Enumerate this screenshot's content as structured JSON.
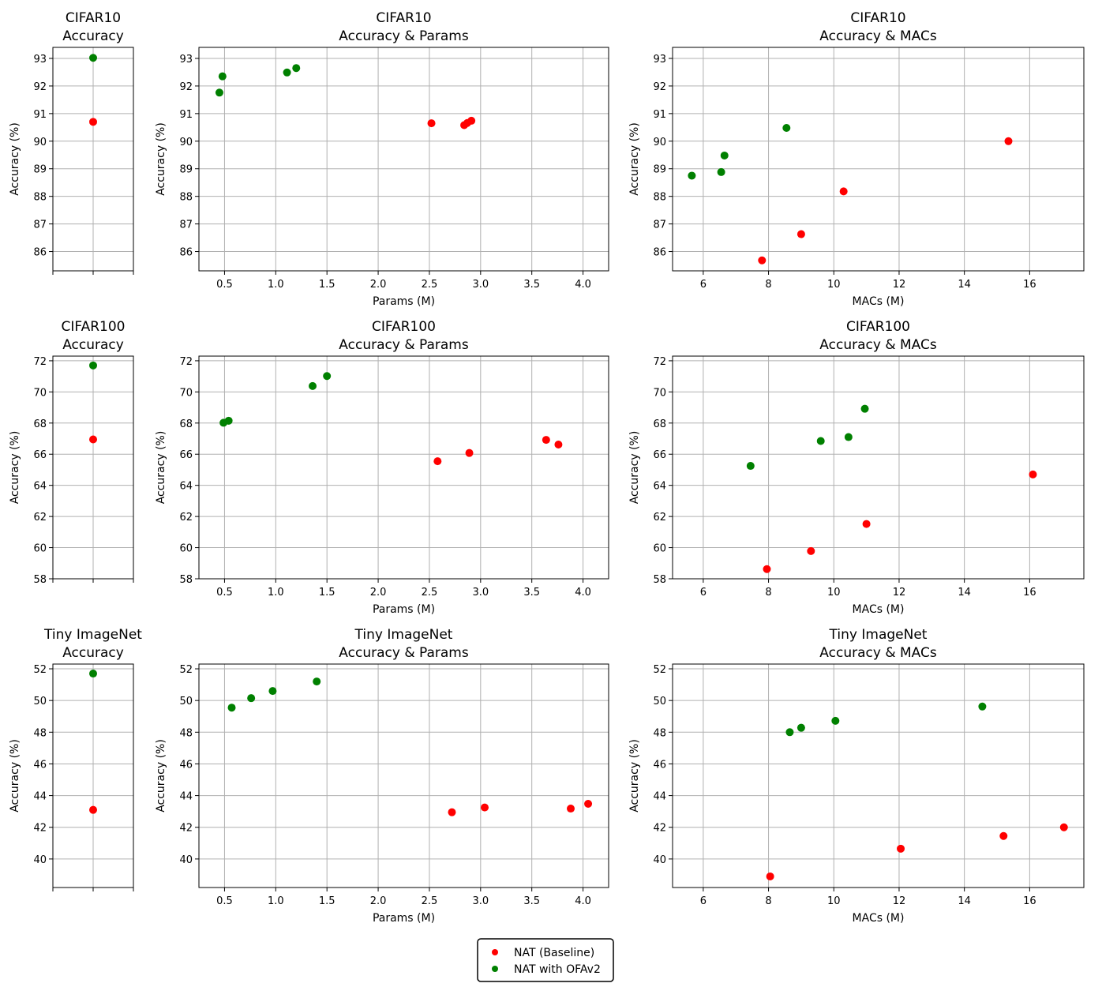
{
  "colors": {
    "baseline": "#ff0000",
    "ofa": "#008000",
    "grid": "#b0b0b0",
    "axis": "#000000"
  },
  "legend": {
    "baseline_label": "NAT (Baseline)",
    "ofa_label": "NAT with OFAv2",
    "placement": "bottom-center"
  },
  "chart_data": [
    {
      "id": "c10_acc",
      "type": "scatter",
      "title": "CIFAR10",
      "subtitle": "Accuracy",
      "xlabel": "",
      "ylabel": "Accuracy (%)",
      "grid": true,
      "xlim": [
        -0.5,
        0.5
      ],
      "ylim": [
        85.3,
        93.4
      ],
      "yticks": [
        86,
        87,
        88,
        89,
        90,
        91,
        92,
        93
      ],
      "xticks": [
        -0.5,
        0,
        0.5
      ],
      "xtick_labels": false,
      "series": [
        {
          "name": "NAT (Baseline)",
          "color_key": "baseline",
          "points": [
            [
              0,
              90.7
            ]
          ]
        },
        {
          "name": "NAT with OFAv2",
          "color_key": "ofa",
          "points": [
            [
              0,
              93.02
            ]
          ]
        }
      ]
    },
    {
      "id": "c10_params",
      "type": "scatter",
      "title": "CIFAR10",
      "subtitle": "Accuracy & Params",
      "xlabel": "Params (M)",
      "ylabel": "Accuracy (%)",
      "grid": true,
      "xlim": [
        0.25,
        4.25
      ],
      "ylim": [
        85.3,
        93.4
      ],
      "yticks": [
        86,
        87,
        88,
        89,
        90,
        91,
        92,
        93
      ],
      "xticks": [
        0.5,
        1.0,
        1.5,
        2.0,
        2.5,
        3.0,
        3.5,
        4.0
      ],
      "xtick_labels": true,
      "series": [
        {
          "name": "NAT (Baseline)",
          "color_key": "baseline",
          "points": [
            [
              2.52,
              90.65
            ],
            [
              2.84,
              90.58
            ],
            [
              2.87,
              90.66
            ],
            [
              2.91,
              90.74
            ]
          ]
        },
        {
          "name": "NAT with OFAv2",
          "color_key": "ofa",
          "points": [
            [
              0.45,
              91.76
            ],
            [
              0.48,
              92.35
            ],
            [
              1.11,
              92.49
            ],
            [
              1.2,
              92.65
            ]
          ]
        }
      ]
    },
    {
      "id": "c10_macs",
      "type": "scatter",
      "title": "CIFAR10",
      "subtitle": "Accuracy & MACs",
      "xlabel": "MACs (M)",
      "ylabel": "Accuracy (%)",
      "grid": true,
      "xlim": [
        5.06,
        17.66
      ],
      "ylim": [
        85.3,
        93.4
      ],
      "yticks": [
        86,
        87,
        88,
        89,
        90,
        91,
        92,
        93
      ],
      "xticks": [
        6,
        8,
        10,
        12,
        14,
        16
      ],
      "xtick_labels": true,
      "series": [
        {
          "name": "NAT (Baseline)",
          "color_key": "baseline",
          "points": [
            [
              7.8,
              85.68
            ],
            [
              9.0,
              86.63
            ],
            [
              10.3,
              88.18
            ],
            [
              15.35,
              90.0
            ]
          ]
        },
        {
          "name": "NAT with OFAv2",
          "color_key": "ofa",
          "points": [
            [
              5.65,
              88.75
            ],
            [
              6.55,
              88.88
            ],
            [
              6.65,
              89.48
            ],
            [
              8.55,
              90.48
            ]
          ]
        }
      ]
    },
    {
      "id": "c100_acc",
      "type": "scatter",
      "title": "CIFAR100",
      "subtitle": "Accuracy",
      "xlabel": "",
      "ylabel": "Accuracy (%)",
      "grid": true,
      "xlim": [
        -0.5,
        0.5
      ],
      "ylim": [
        58,
        72.3
      ],
      "yticks": [
        58,
        60,
        62,
        64,
        66,
        68,
        70,
        72
      ],
      "xticks": [
        -0.5,
        0,
        0.5
      ],
      "xtick_labels": false,
      "series": [
        {
          "name": "NAT (Baseline)",
          "color_key": "baseline",
          "points": [
            [
              0,
              66.95
            ]
          ]
        },
        {
          "name": "NAT with OFAv2",
          "color_key": "ofa",
          "points": [
            [
              0,
              71.7
            ]
          ]
        }
      ]
    },
    {
      "id": "c100_params",
      "type": "scatter",
      "title": "CIFAR100",
      "subtitle": "Accuracy & Params",
      "xlabel": "Params (M)",
      "ylabel": "Accuracy (%)",
      "grid": true,
      "xlim": [
        0.25,
        4.25
      ],
      "ylim": [
        58,
        72.3
      ],
      "yticks": [
        58,
        60,
        62,
        64,
        66,
        68,
        70,
        72
      ],
      "xticks": [
        0.5,
        1.0,
        1.5,
        2.0,
        2.5,
        3.0,
        3.5,
        4.0
      ],
      "xtick_labels": true,
      "series": [
        {
          "name": "NAT (Baseline)",
          "color_key": "baseline",
          "points": [
            [
              2.58,
              65.55
            ],
            [
              2.89,
              66.08
            ],
            [
              3.64,
              66.92
            ],
            [
              3.76,
              66.62
            ]
          ]
        },
        {
          "name": "NAT with OFAv2",
          "color_key": "ofa",
          "points": [
            [
              0.49,
              68.02
            ],
            [
              0.54,
              68.15
            ],
            [
              1.36,
              70.38
            ],
            [
              1.5,
              71.02
            ]
          ]
        }
      ]
    },
    {
      "id": "c100_macs",
      "type": "scatter",
      "title": "CIFAR100",
      "subtitle": "Accuracy & MACs",
      "xlabel": "MACs (M)",
      "ylabel": "Accuracy (%)",
      "grid": true,
      "xlim": [
        5.06,
        17.66
      ],
      "ylim": [
        58,
        72.3
      ],
      "yticks": [
        58,
        60,
        62,
        64,
        66,
        68,
        70,
        72
      ],
      "xticks": [
        6,
        8,
        10,
        12,
        14,
        16
      ],
      "xtick_labels": true,
      "series": [
        {
          "name": "NAT (Baseline)",
          "color_key": "baseline",
          "points": [
            [
              7.95,
              58.62
            ],
            [
              9.3,
              59.78
            ],
            [
              11.0,
              61.52
            ],
            [
              16.1,
              64.7
            ]
          ]
        },
        {
          "name": "NAT with OFAv2",
          "color_key": "ofa",
          "points": [
            [
              7.45,
              65.25
            ],
            [
              9.6,
              66.85
            ],
            [
              10.45,
              67.1
            ],
            [
              10.95,
              68.92
            ]
          ]
        }
      ]
    },
    {
      "id": "tin_acc",
      "type": "scatter",
      "title": "Tiny ImageNet",
      "subtitle": "Accuracy",
      "xlabel": "",
      "ylabel": "Accuracy (%)",
      "grid": true,
      "xlim": [
        -0.5,
        0.5
      ],
      "ylim": [
        38.2,
        52.3
      ],
      "yticks": [
        40,
        42,
        44,
        46,
        48,
        50,
        52
      ],
      "xticks": [
        -0.5,
        0,
        0.5
      ],
      "xtick_labels": false,
      "series": [
        {
          "name": "NAT (Baseline)",
          "color_key": "baseline",
          "points": [
            [
              0,
              43.1
            ]
          ]
        },
        {
          "name": "NAT with OFAv2",
          "color_key": "ofa",
          "points": [
            [
              0,
              51.7
            ]
          ]
        }
      ]
    },
    {
      "id": "tin_params",
      "type": "scatter",
      "title": "Tiny ImageNet",
      "subtitle": "Accuracy & Params",
      "xlabel": "Params (M)",
      "ylabel": "Accuracy (%)",
      "grid": true,
      "xlim": [
        0.25,
        4.25
      ],
      "ylim": [
        38.2,
        52.3
      ],
      "yticks": [
        40,
        42,
        44,
        46,
        48,
        50,
        52
      ],
      "xticks": [
        0.5,
        1.0,
        1.5,
        2.0,
        2.5,
        3.0,
        3.5,
        4.0
      ],
      "xtick_labels": true,
      "series": [
        {
          "name": "NAT (Baseline)",
          "color_key": "baseline",
          "points": [
            [
              2.72,
              42.95
            ],
            [
              3.04,
              43.25
            ],
            [
              3.88,
              43.18
            ],
            [
              4.05,
              43.48
            ]
          ]
        },
        {
          "name": "NAT with OFAv2",
          "color_key": "ofa",
          "points": [
            [
              0.57,
              49.55
            ],
            [
              0.76,
              50.15
            ],
            [
              0.97,
              50.6
            ],
            [
              1.4,
              51.2
            ]
          ]
        }
      ]
    },
    {
      "id": "tin_macs",
      "type": "scatter",
      "title": "Tiny ImageNet",
      "subtitle": "Accuracy & MACs",
      "xlabel": "MACs (M)",
      "ylabel": "Accuracy (%)",
      "grid": true,
      "xlim": [
        5.06,
        17.66
      ],
      "ylim": [
        38.2,
        52.3
      ],
      "yticks": [
        40,
        42,
        44,
        46,
        48,
        50,
        52
      ],
      "xticks": [
        6,
        8,
        10,
        12,
        14,
        16
      ],
      "xtick_labels": true,
      "series": [
        {
          "name": "NAT (Baseline)",
          "color_key": "baseline",
          "points": [
            [
              8.05,
              38.9
            ],
            [
              12.05,
              40.65
            ],
            [
              15.2,
              41.45
            ],
            [
              17.05,
              42.0
            ]
          ]
        },
        {
          "name": "NAT with OFAv2",
          "color_key": "ofa",
          "points": [
            [
              8.65,
              48.0
            ],
            [
              9.0,
              48.28
            ],
            [
              10.05,
              48.72
            ],
            [
              14.55,
              49.62
            ]
          ]
        }
      ]
    }
  ]
}
